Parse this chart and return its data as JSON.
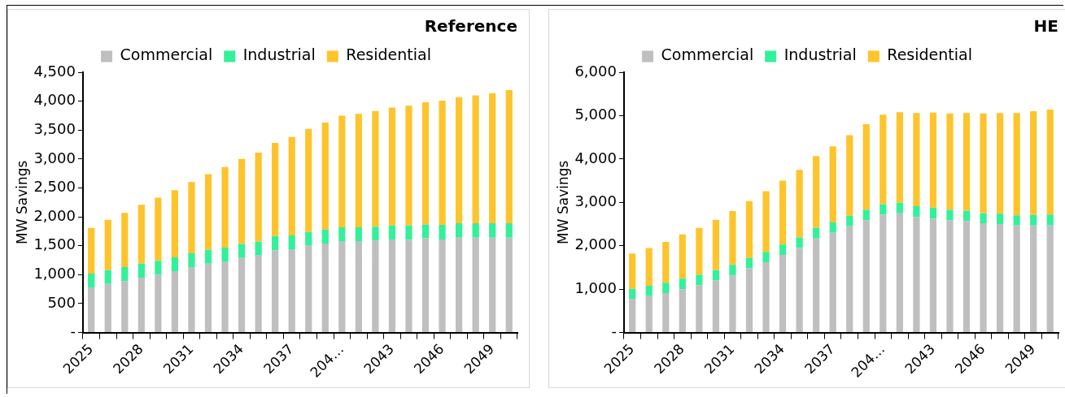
{
  "chart_data": [
    {
      "type": "bar",
      "title": "Reference",
      "ylabel": "MW Savings",
      "stacked": true,
      "legend": "top",
      "categories": [
        "2025",
        null,
        null,
        "2028",
        null,
        null,
        "2031",
        null,
        null,
        "2034",
        null,
        null,
        "2037",
        null,
        null,
        "204…",
        null,
        null,
        "2043",
        null,
        null,
        "2046",
        null,
        null,
        "2049",
        null
      ],
      "ylim": [
        0,
        4500
      ],
      "yticks": [
        {
          "value": 0,
          "label": "-"
        },
        500,
        {
          "value": 1000,
          "label": "1,000"
        },
        {
          "value": 1500,
          "label": "1,500"
        },
        {
          "value": 2000,
          "label": "2,000"
        },
        {
          "value": 2500,
          "label": "2,500"
        },
        {
          "value": 3000,
          "label": "3,000"
        },
        {
          "value": 3500,
          "label": "3,500"
        },
        {
          "value": 4000,
          "label": "4,000"
        },
        {
          "value": 4500,
          "label": "4,500"
        }
      ],
      "series": [
        {
          "name": "Commercial",
          "color": "#bfbfbf",
          "values": [
            780,
            840,
            890,
            950,
            1000,
            1060,
            1130,
            1190,
            1230,
            1290,
            1330,
            1420,
            1430,
            1500,
            1540,
            1580,
            1580,
            1590,
            1610,
            1600,
            1630,
            1610,
            1640,
            1640,
            1640,
            1640
          ]
        },
        {
          "name": "Industrial",
          "color": "#33f09a",
          "values": [
            240,
            240,
            240,
            240,
            240,
            240,
            240,
            240,
            240,
            240,
            240,
            250,
            250,
            240,
            240,
            240,
            240,
            240,
            240,
            250,
            240,
            250,
            250,
            250,
            250,
            250
          ]
        },
        {
          "name": "Residential",
          "color": "#fec42c",
          "values": [
            790,
            870,
            940,
            1020,
            1090,
            1160,
            1230,
            1310,
            1390,
            1470,
            1540,
            1610,
            1700,
            1780,
            1850,
            1930,
            1960,
            2000,
            2040,
            2070,
            2110,
            2150,
            2180,
            2210,
            2250,
            2300
          ]
        }
      ]
    },
    {
      "type": "bar",
      "title": "HE",
      "ylabel": "MW Savings",
      "stacked": true,
      "legend": "top",
      "categories": [
        "2025",
        null,
        null,
        "2028",
        null,
        null,
        "2031",
        null,
        null,
        "2034",
        null,
        null,
        "2037",
        null,
        null,
        "204…",
        null,
        null,
        "2043",
        null,
        null,
        "2046",
        null,
        null,
        "2049",
        null
      ],
      "ylim": [
        0,
        6000
      ],
      "yticks": [
        {
          "value": 0,
          "label": "-"
        },
        {
          "value": 1000,
          "label": "1,000"
        },
        {
          "value": 2000,
          "label": "2,000"
        },
        {
          "value": 3000,
          "label": "3,000"
        },
        {
          "value": 4000,
          "label": "4,000"
        },
        {
          "value": 5000,
          "label": "5,000"
        },
        {
          "value": 6000,
          "label": "6,000"
        }
      ],
      "series": [
        {
          "name": "Commercial",
          "color": "#bfbfbf",
          "values": [
            780,
            840,
            910,
            1000,
            1090,
            1200,
            1310,
            1480,
            1620,
            1790,
            1950,
            2170,
            2300,
            2450,
            2590,
            2720,
            2750,
            2660,
            2620,
            2590,
            2570,
            2520,
            2500,
            2470,
            2470,
            2470
          ]
        },
        {
          "name": "Industrial",
          "color": "#33f09a",
          "values": [
            230,
            240,
            240,
            240,
            240,
            240,
            250,
            240,
            240,
            240,
            240,
            240,
            240,
            240,
            240,
            240,
            240,
            250,
            260,
            240,
            240,
            230,
            240,
            230,
            240,
            250
          ]
        },
        {
          "name": "Residential",
          "color": "#fec42c",
          "values": [
            810,
            870,
            940,
            1020,
            1080,
            1160,
            1240,
            1310,
            1400,
            1470,
            1560,
            1660,
            1750,
            1860,
            1970,
            2060,
            2090,
            2150,
            2190,
            2220,
            2250,
            2300,
            2320,
            2360,
            2390,
            2420
          ]
        }
      ]
    }
  ]
}
